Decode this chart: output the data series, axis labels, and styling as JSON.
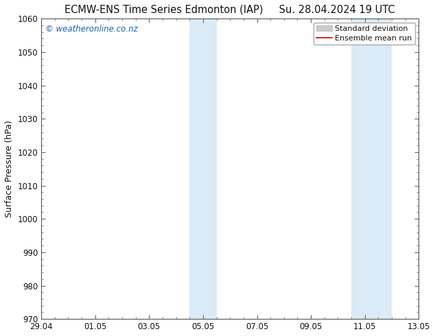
{
  "title": "ECMW-ENS Time Series Edmonton (IAP)     Su. 28.04.2024 19 UTC",
  "ylabel": "Surface Pressure (hPa)",
  "ylim": [
    970,
    1060
  ],
  "yticks": [
    970,
    980,
    990,
    1000,
    1010,
    1020,
    1030,
    1040,
    1050,
    1060
  ],
  "xlim": [
    0,
    14
  ],
  "xtick_labels": [
    "29.04",
    "01.05",
    "03.05",
    "05.05",
    "07.05",
    "09.05",
    "11.05",
    "13.05"
  ],
  "xtick_positions": [
    0,
    2,
    4,
    6,
    8,
    10,
    12,
    14
  ],
  "shaded_bands": [
    {
      "x_start": 5.5,
      "x_end": 6.0,
      "color": "#daeaf6"
    },
    {
      "x_start": 6.0,
      "x_end": 6.5,
      "color": "#daeaf6"
    },
    {
      "x_start": 11.5,
      "x_end": 12.0,
      "color": "#daeaf6"
    },
    {
      "x_start": 12.0,
      "x_end": 13.0,
      "color": "#daeaf6"
    }
  ],
  "watermark_text": "© weatheronline.co.nz",
  "watermark_color": "#1a5fb4",
  "legend_std_label": "Standard deviation",
  "legend_ens_label": "Ensemble mean run",
  "legend_std_color": "#cccccc",
  "legend_ens_color": "#cc0000",
  "background_color": "#ffffff",
  "spine_color": "#555555",
  "tick_color": "#555555",
  "tick_label_color": "#111111",
  "title_fontsize": 10.5,
  "axis_label_fontsize": 9,
  "tick_fontsize": 8.5,
  "watermark_fontsize": 8.5,
  "legend_fontsize": 8
}
